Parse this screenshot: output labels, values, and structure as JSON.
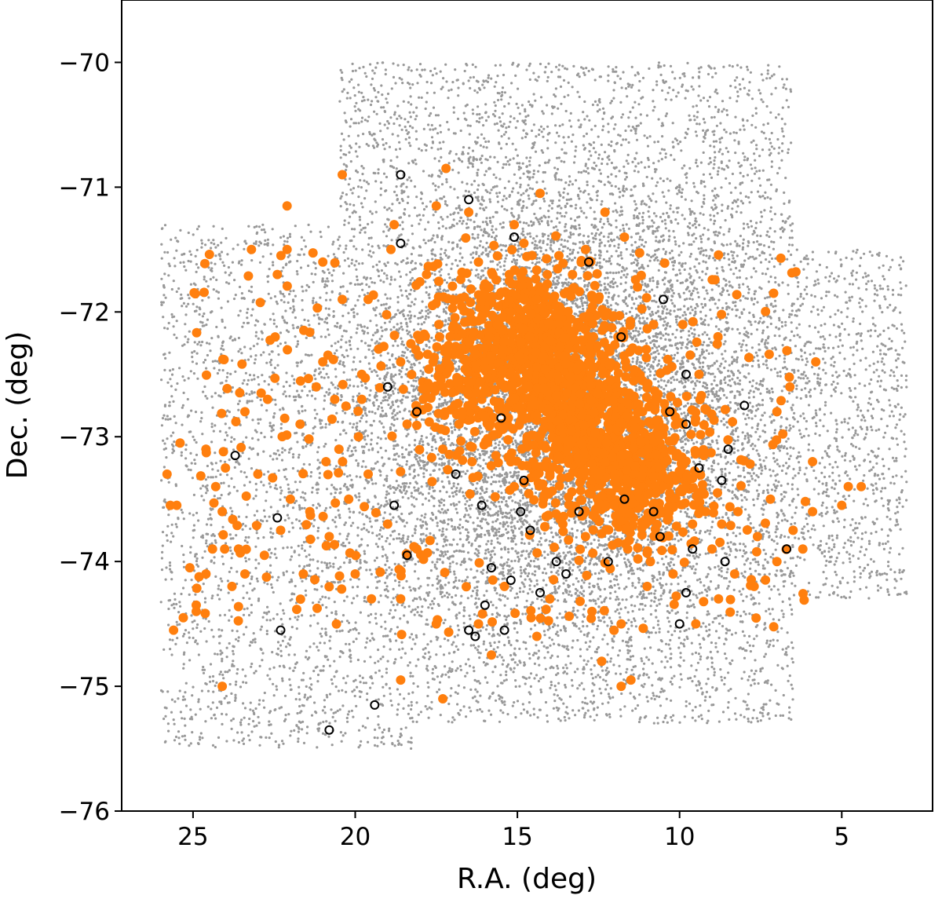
{
  "chart_data": {
    "type": "scatter",
    "title": "",
    "xlabel": "R.A. (deg)",
    "ylabel": "Dec. (deg)",
    "xlim": [
      27.2,
      2.2
    ],
    "ylim": [
      -76.0,
      -69.5
    ],
    "x_inverted": true,
    "grid": false,
    "legend": "none",
    "xticks": [
      25,
      20,
      15,
      10,
      5
    ],
    "yticks": [
      -70,
      -71,
      -72,
      -73,
      -74,
      -75,
      -76
    ],
    "xtick_labels": [
      "25",
      "20",
      "15",
      "10",
      "5"
    ],
    "ytick_labels": [
      "−70",
      "−71",
      "−72",
      "−73",
      "−74",
      "−75",
      "−76"
    ],
    "colors": {
      "background_stars": "#999999",
      "highlight": "#ff7f0e",
      "open_markers": "#000000"
    },
    "series": [
      {
        "role": "background-field-stars",
        "marker": "small-dot",
        "color": "#999999",
        "count_approx": 30000,
        "footprint": {
          "tiles": [
            {
              "ra_range": [
                18.2,
                26.0
              ],
              "dec_range": [
                -75.5,
                -71.3
              ]
            },
            {
              "ra_range": [
                10.2,
                20.5
              ],
              "dec_range": [
                -75.3,
                -70.0
              ]
            },
            {
              "ra_range": [
                6.5,
                17.0
              ],
              "dec_range": [
                -75.3,
                -70.0
              ]
            },
            {
              "ra_range": [
                3.0,
                12.0
              ],
              "dec_range": [
                -74.3,
                -71.5
              ]
            }
          ],
          "density_peak": {
            "ra": 13.5,
            "dec": -72.8
          }
        }
      },
      {
        "role": "highlighted-sources",
        "marker": "filled-circle",
        "color": "#ff7f0e",
        "count_approx": 2000,
        "points": [
          [
            20.4,
            -70.9
          ],
          [
            17.2,
            -70.85
          ],
          [
            14.3,
            -71.05
          ],
          [
            16.5,
            -71.2
          ],
          [
            12.3,
            -71.2
          ],
          [
            22.1,
            -71.15
          ],
          [
            17.5,
            -71.15
          ],
          [
            18.8,
            -71.3
          ],
          [
            15.1,
            -71.3
          ],
          [
            23.2,
            -71.5
          ],
          [
            22.1,
            -71.5
          ],
          [
            11.7,
            -71.4
          ],
          [
            22.4,
            -71.7
          ],
          [
            21.0,
            -71.6
          ],
          [
            18.9,
            -71.5
          ],
          [
            7.1,
            -71.85
          ],
          [
            20.4,
            -71.9
          ],
          [
            19.6,
            -71.9
          ],
          [
            9.9,
            -72.1
          ],
          [
            5.8,
            -72.4
          ],
          [
            21.0,
            -72.4
          ],
          [
            9.4,
            -72.5
          ],
          [
            19.8,
            -72.5
          ],
          [
            22.7,
            -72.7
          ],
          [
            19.8,
            -72.7
          ],
          [
            22.9,
            -72.65
          ],
          [
            21.2,
            -72.6
          ],
          [
            23.4,
            -72.8
          ],
          [
            21.7,
            -72.9
          ],
          [
            24.6,
            -73.1
          ],
          [
            25.4,
            -73.05
          ],
          [
            25.8,
            -73.3
          ],
          [
            25.5,
            -73.55
          ],
          [
            25.7,
            -73.55
          ],
          [
            24.0,
            -73.25
          ],
          [
            24.3,
            -73.4
          ],
          [
            23.0,
            -73.3
          ],
          [
            24.1,
            -73.6
          ],
          [
            23.6,
            -73.9
          ],
          [
            22.8,
            -73.95
          ],
          [
            24.4,
            -73.9
          ],
          [
            25.1,
            -74.05
          ],
          [
            24.6,
            -74.1
          ],
          [
            23.4,
            -74.1
          ],
          [
            23.8,
            -74.2
          ],
          [
            24.9,
            -74.35
          ],
          [
            24.9,
            -74.4
          ],
          [
            25.3,
            -74.45
          ],
          [
            25.6,
            -74.55
          ],
          [
            24.1,
            -75.0
          ],
          [
            18.6,
            -74.95
          ],
          [
            17.3,
            -75.1
          ],
          [
            11.8,
            -75.0
          ],
          [
            11.5,
            -74.95
          ],
          [
            12.4,
            -74.8
          ],
          [
            15.8,
            -74.75
          ],
          [
            14.4,
            -74.6
          ],
          [
            11.8,
            -74.5
          ],
          [
            9.5,
            -74.5
          ],
          [
            6.7,
            -73.9
          ],
          [
            6.5,
            -73.75
          ],
          [
            5.9,
            -73.6
          ],
          [
            4.8,
            -73.4
          ],
          [
            5.0,
            -73.55
          ],
          [
            4.4,
            -73.4
          ],
          [
            5.9,
            -73.2
          ],
          [
            7.0,
            -72.8
          ],
          [
            6.6,
            -72.6
          ],
          [
            18.1,
            -73.9
          ],
          [
            19.0,
            -73.7
          ],
          [
            20.8,
            -73.8
          ],
          [
            21.4,
            -73.6
          ],
          [
            20.2,
            -73.5
          ],
          [
            19.6,
            -73.3
          ],
          [
            20.5,
            -73.1
          ],
          [
            19.9,
            -73.0
          ],
          [
            18.4,
            -72.9
          ],
          [
            17.9,
            -72.7
          ],
          [
            16.6,
            -72.3
          ],
          [
            17.4,
            -72.2
          ],
          [
            16.0,
            -72.0
          ],
          [
            15.2,
            -71.9
          ],
          [
            14.9,
            -72.3
          ],
          [
            14.4,
            -72.5
          ],
          [
            14.0,
            -72.2
          ],
          [
            13.6,
            -72.0
          ],
          [
            13.1,
            -72.1
          ],
          [
            12.8,
            -72.4
          ],
          [
            12.5,
            -72.6
          ],
          [
            13.4,
            -72.6
          ],
          [
            13.9,
            -72.8
          ],
          [
            13.3,
            -72.9
          ],
          [
            12.8,
            -73.0
          ],
          [
            12.3,
            -73.1
          ],
          [
            11.8,
            -73.3
          ],
          [
            11.3,
            -73.2
          ],
          [
            10.8,
            -73.4
          ],
          [
            10.3,
            -73.5
          ],
          [
            9.8,
            -73.3
          ],
          [
            9.2,
            -73.6
          ],
          [
            8.7,
            -73.7
          ],
          [
            8.2,
            -73.6
          ],
          [
            7.6,
            -73.8
          ],
          [
            12.6,
            -73.4
          ],
          [
            13.1,
            -73.3
          ],
          [
            14.7,
            -73.0
          ],
          [
            15.4,
            -72.8
          ],
          [
            16.1,
            -72.7
          ],
          [
            16.8,
            -72.9
          ],
          [
            17.3,
            -73.1
          ],
          [
            16.4,
            -73.2
          ],
          [
            15.1,
            -73.4
          ],
          [
            14.2,
            -73.5
          ],
          [
            13.6,
            -73.7
          ],
          [
            12.9,
            -73.8
          ],
          [
            11.6,
            -73.9
          ],
          [
            10.9,
            -74.0
          ],
          [
            10.2,
            -74.1
          ],
          [
            14.9,
            -71.7
          ],
          [
            16.2,
            -71.6
          ],
          [
            17.8,
            -71.7
          ],
          [
            17.0,
            -71.9
          ],
          [
            15.7,
            -72.1
          ],
          [
            14.6,
            -72.0
          ],
          [
            13.3,
            -71.7
          ],
          [
            12.5,
            -71.9
          ],
          [
            11.9,
            -72.2
          ],
          [
            11.4,
            -72.5
          ],
          [
            10.7,
            -72.7
          ],
          [
            10.1,
            -72.9
          ],
          [
            15.5,
            -72.5
          ],
          [
            16.9,
            -72.6
          ],
          [
            18.6,
            -72.4
          ],
          [
            17.6,
            -72.4
          ],
          [
            14.1,
            -73.2
          ],
          [
            13.7,
            -72.4
          ],
          [
            12.1,
            -72.8
          ],
          [
            11.2,
            -72.9
          ],
          [
            10.5,
            -73.1
          ],
          [
            9.6,
            -73.7
          ],
          [
            9.0,
            -73.9
          ],
          [
            8.3,
            -74.1
          ],
          [
            7.7,
            -74.2
          ],
          [
            7.0,
            -74.0
          ],
          [
            7.2,
            -73.5
          ],
          [
            14.8,
            -71.45
          ],
          [
            15.9,
            -71.8
          ],
          [
            12.9,
            -71.5
          ],
          [
            11.3,
            -71.8
          ],
          [
            10.8,
            -72.1
          ],
          [
            20.9,
            -73.2
          ],
          [
            22.0,
            -73.5
          ],
          [
            22.3,
            -73.75
          ],
          [
            21.6,
            -74.1
          ],
          [
            19.5,
            -74.3
          ],
          [
            20.0,
            -74.1
          ],
          [
            18.6,
            -74.3
          ],
          [
            17.5,
            -74.5
          ],
          [
            16.2,
            -74.5
          ],
          [
            15.4,
            -74.2
          ],
          [
            14.0,
            -74.3
          ],
          [
            12.7,
            -74.4
          ],
          [
            11.0,
            -74.2
          ],
          [
            8.8,
            -74.3
          ],
          [
            6.2,
            -73.9
          ]
        ]
      },
      {
        "role": "marked-sources",
        "marker": "open-circle",
        "color": "#000000",
        "points": [
          [
            18.6,
            -70.9
          ],
          [
            16.5,
            -71.1
          ],
          [
            15.1,
            -71.4
          ],
          [
            18.6,
            -71.45
          ],
          [
            12.8,
            -71.6
          ],
          [
            10.5,
            -71.9
          ],
          [
            11.8,
            -72.2
          ],
          [
            19.0,
            -72.6
          ],
          [
            9.8,
            -72.5
          ],
          [
            8.0,
            -72.75
          ],
          [
            23.7,
            -73.15
          ],
          [
            18.1,
            -72.8
          ],
          [
            15.5,
            -72.85
          ],
          [
            10.3,
            -72.8
          ],
          [
            9.8,
            -72.9
          ],
          [
            8.5,
            -73.1
          ],
          [
            16.9,
            -73.3
          ],
          [
            14.8,
            -73.35
          ],
          [
            11.7,
            -73.5
          ],
          [
            9.4,
            -73.25
          ],
          [
            22.4,
            -73.65
          ],
          [
            18.8,
            -73.55
          ],
          [
            16.1,
            -73.55
          ],
          [
            14.9,
            -73.6
          ],
          [
            14.6,
            -73.75
          ],
          [
            13.1,
            -73.6
          ],
          [
            10.8,
            -73.6
          ],
          [
            8.7,
            -73.35
          ],
          [
            18.4,
            -73.95
          ],
          [
            15.8,
            -74.05
          ],
          [
            13.8,
            -74.0
          ],
          [
            12.2,
            -74.0
          ],
          [
            10.6,
            -73.8
          ],
          [
            9.6,
            -73.9
          ],
          [
            8.6,
            -74.0
          ],
          [
            6.7,
            -73.9
          ],
          [
            15.2,
            -74.15
          ],
          [
            14.3,
            -74.25
          ],
          [
            13.5,
            -74.1
          ],
          [
            9.8,
            -74.25
          ],
          [
            16.0,
            -74.35
          ],
          [
            22.3,
            -74.55
          ],
          [
            16.5,
            -74.55
          ],
          [
            16.3,
            -74.6
          ],
          [
            15.4,
            -74.55
          ],
          [
            10.0,
            -74.5
          ],
          [
            19.4,
            -75.15
          ],
          [
            20.8,
            -75.35
          ]
        ]
      }
    ]
  }
}
